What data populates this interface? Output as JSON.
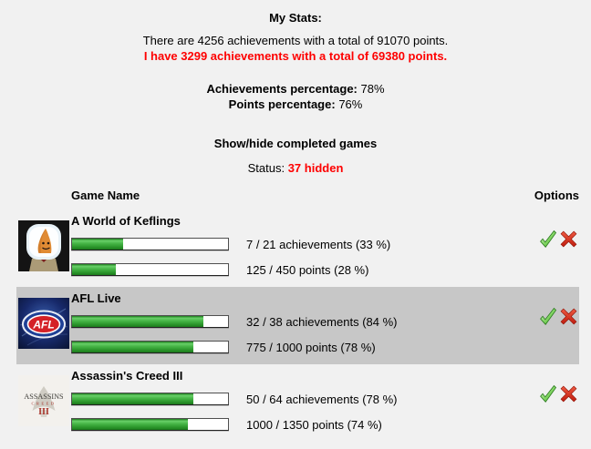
{
  "header": {
    "title": "My Stats:",
    "total_line": "There are 4256 achievements with a total of 91070 points.",
    "mine_line": "I have 3299 achievements with a total of 69380 points.",
    "achievements_pct_label": "Achievements percentage:",
    "achievements_pct_value": "78%",
    "points_pct_label": "Points percentage:",
    "points_pct_value": "76%",
    "toggle_label": "Show/hide completed games",
    "status_label": "Status:",
    "status_value": "37 hidden"
  },
  "table": {
    "columns": {
      "game": "Game Name",
      "options": "Options"
    },
    "rows": [
      {
        "name": "A World of Keflings",
        "icon": "keflings-game-icon",
        "highlighted": false,
        "achievements": {
          "label": "7 / 21 achievements (33 %)",
          "pct": 33
        },
        "points": {
          "label": "125 / 450 points (28 %)",
          "pct": 28
        }
      },
      {
        "name": "AFL Live",
        "icon": "afl-live-game-icon",
        "highlighted": true,
        "achievements": {
          "label": "32 / 38 achievements (84 %)",
          "pct": 84
        },
        "points": {
          "label": "775 / 1000 points (78 %)",
          "pct": 78
        }
      },
      {
        "name": "Assassin's Creed III",
        "icon": "assassins-creed-3-game-icon",
        "highlighted": false,
        "achievements": {
          "label": "50 / 64 achievements (78 %)",
          "pct": 78
        },
        "points": {
          "label": "1000 / 1350 points (74 %)",
          "pct": 74
        }
      }
    ],
    "option_icons": [
      "check-icon",
      "x-icon"
    ]
  },
  "colors": {
    "page_background": "#f1f1f1",
    "accent_red": "#fe0000",
    "row_highlight": "#c7c7c7",
    "bar_green": "#2a942a",
    "check_green": "#2b8a1f",
    "x_red": "#d62e1f"
  }
}
